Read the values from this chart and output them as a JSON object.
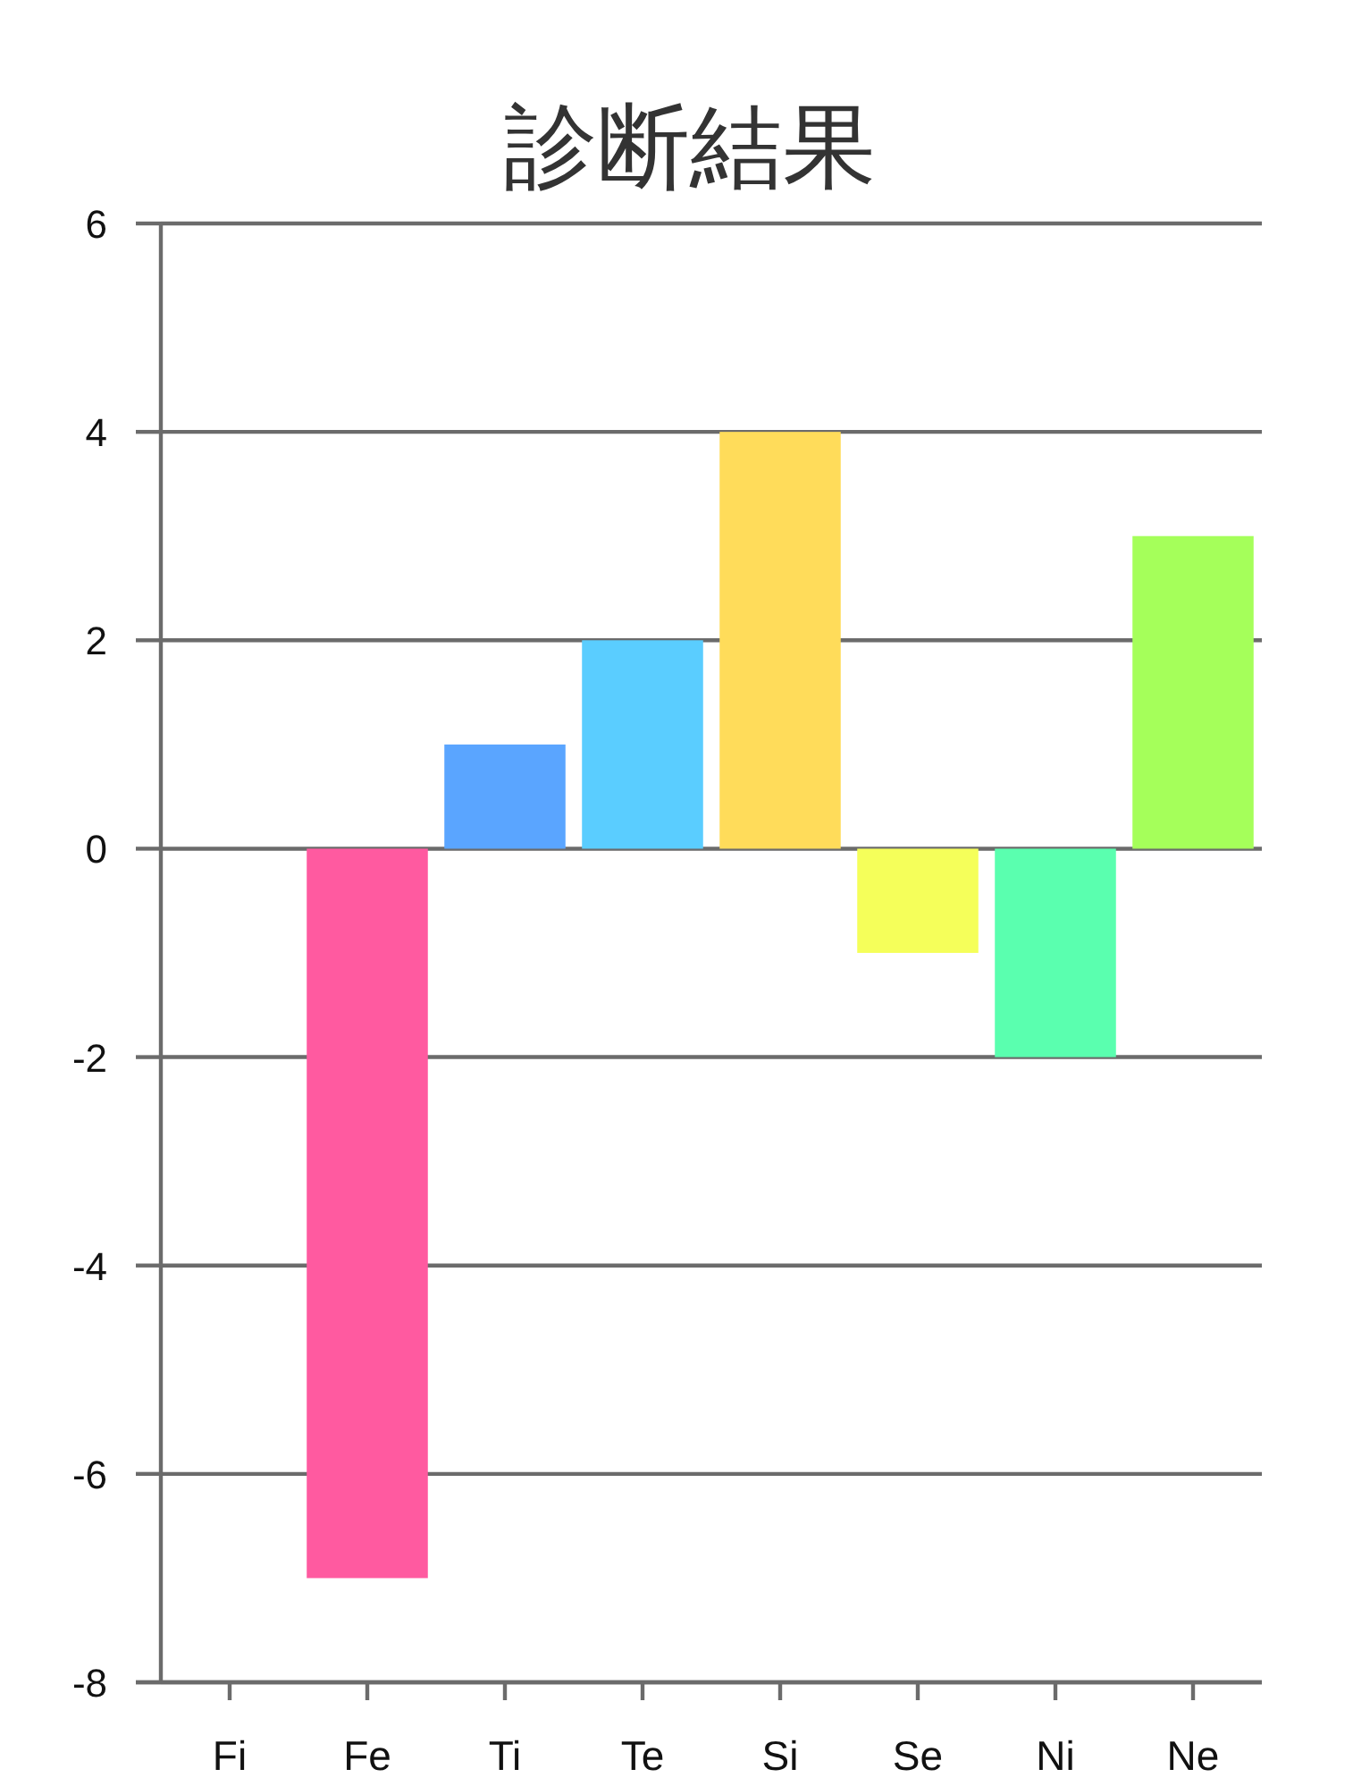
{
  "chart_data": {
    "type": "bar",
    "title": "診断結果",
    "categories": [
      "Fi",
      "Fe",
      "Ti",
      "Te",
      "Si",
      "Se",
      "Ni",
      "Ne"
    ],
    "values": [
      0,
      -7,
      1,
      2,
      4,
      -1,
      -2,
      3
    ],
    "colors": [
      null,
      "#ff5aa0",
      "#5aa5ff",
      "#5acdff",
      "#ffdc5a",
      "#f5ff5a",
      "#5affaf",
      "#a5ff5a"
    ],
    "ylim": [
      -8,
      6
    ],
    "yticks": [
      -8,
      -6,
      -4,
      -2,
      0,
      2,
      4,
      6
    ],
    "grid": "y"
  }
}
